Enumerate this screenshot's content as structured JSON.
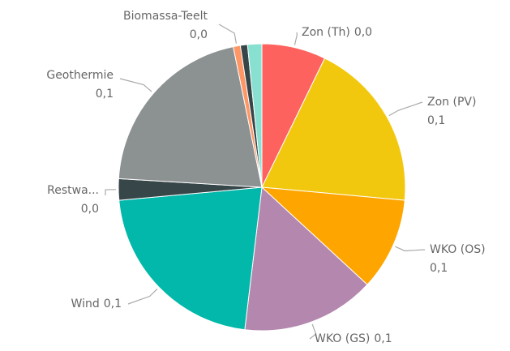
{
  "chart_data": {
    "type": "pie",
    "categories": [
      "Zon (Th)",
      "Zon (PV)",
      "WKO (OS)",
      "WKO (GS)",
      "Wind",
      "Restwa...",
      "Geothermie",
      "Biomassa-Teelt",
      null,
      null
    ],
    "values": [
      0.036,
      0.096,
      0.052,
      0.075,
      0.108,
      0.012,
      0.104,
      0.004,
      0.004,
      0.008
    ],
    "value_labels": [
      "0,0",
      "0,1",
      "0,1",
      "0,1",
      "0,1",
      "0,0",
      "0,1",
      "0,0",
      null,
      null
    ],
    "colors": [
      "#fd625e",
      "#f2c80f",
      "#fea500",
      "#b487ae",
      "#01b8aa",
      "#374649",
      "#8c9191",
      "#fe9666",
      "#374649",
      "#88e0d0"
    ]
  }
}
